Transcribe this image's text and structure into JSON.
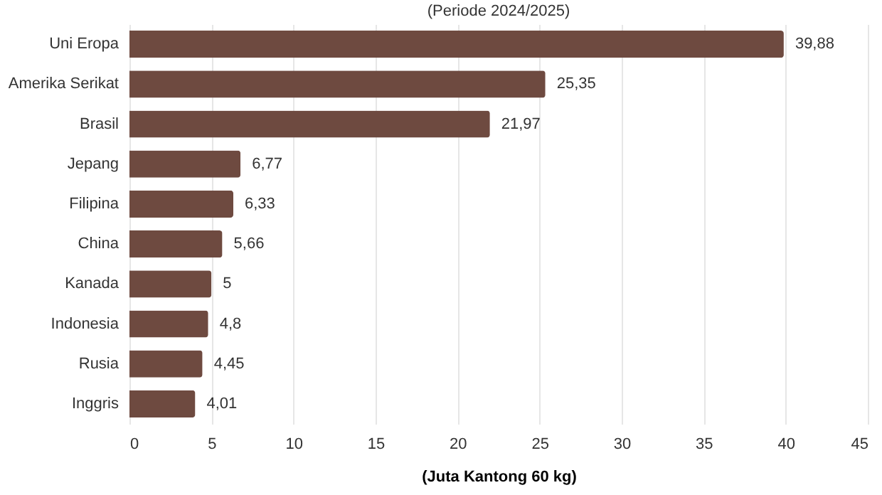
{
  "chart_data": {
    "type": "bar",
    "orientation": "horizontal",
    "subtitle": "(Periode 2024/2025)",
    "xlabel": "(Juta Kantong 60 kg)",
    "categories": [
      "Uni Eropa",
      "Amerika Serikat",
      "Brasil",
      "Jepang",
      "Filipina",
      "China",
      "Kanada",
      "Indonesia",
      "Rusia",
      "Inggris"
    ],
    "values": [
      39.88,
      25.35,
      21.97,
      6.77,
      6.33,
      5.66,
      5,
      4.8,
      4.45,
      4.01
    ],
    "value_labels": [
      "39,88",
      "25,35",
      "21,97",
      "6,77",
      "6,33",
      "5,66",
      "5",
      "4,8",
      "4,45",
      "4,01"
    ],
    "color": "#6e4a40",
    "xlim": [
      0,
      45
    ],
    "xticks": [
      0,
      5,
      10,
      15,
      20,
      25,
      30,
      35,
      40,
      45
    ],
    "grid": "x"
  }
}
